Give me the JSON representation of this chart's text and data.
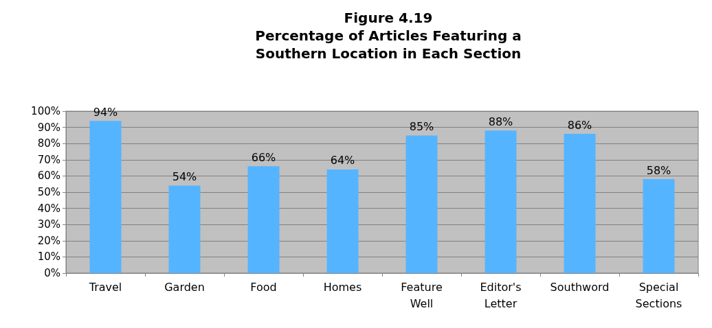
{
  "chart_data": {
    "type": "bar",
    "title": "Figure 4.19\nPercentage of Articles Featuring a\nSouthern Location in Each Section",
    "categories": [
      "Travel",
      "Garden",
      "Food",
      "Homes",
      "Feature\nWell",
      "Editor's\nLetter",
      "Southword",
      "Special\nSections"
    ],
    "values": [
      94,
      54,
      66,
      64,
      85,
      88,
      86,
      58
    ],
    "value_labels": [
      "94%",
      "54%",
      "66%",
      "64%",
      "85%",
      "88%",
      "86%",
      "58%"
    ],
    "color": "#55b4ff",
    "ylim": [
      0,
      100
    ],
    "yticks": [
      {
        "value": 0,
        "label": "0%"
      },
      {
        "value": 10,
        "label": "10%"
      },
      {
        "value": 20,
        "label": "20%"
      },
      {
        "value": 30,
        "label": "30%"
      },
      {
        "value": 40,
        "label": "40%"
      },
      {
        "value": 50,
        "label": "50%"
      },
      {
        "value": 60,
        "label": "60%"
      },
      {
        "value": 70,
        "label": "70%"
      },
      {
        "value": 80,
        "label": "80%"
      },
      {
        "value": 90,
        "label": "90%"
      },
      {
        "value": 100,
        "label": "100%"
      }
    ],
    "grid": "y"
  }
}
